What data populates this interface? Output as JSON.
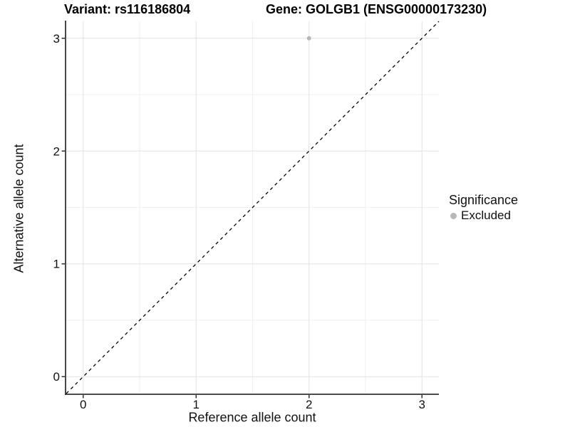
{
  "title": {
    "variant": "Variant: rs116186804",
    "gene": "Gene: GOLGB1 (ENSG00000173230)"
  },
  "axes": {
    "x": {
      "label": "Reference allele count",
      "ticks": [
        "0",
        "1",
        "2",
        "3"
      ]
    },
    "y": {
      "label": "Alternative allele count",
      "ticks": [
        "0",
        "1",
        "2",
        "3"
      ]
    }
  },
  "legend": {
    "title": "Significance",
    "items": [
      {
        "label": "Excluded",
        "color": "#b8b8b8"
      }
    ]
  },
  "colors": {
    "background": "#ffffff",
    "grid_major": "#e2e2e2",
    "grid_minor": "#efefef",
    "axis_line": "#333333",
    "tick_mark": "#333333",
    "point": "#b8b8b8",
    "reference_line": "#000000",
    "text": "#111111"
  },
  "chart_data": {
    "type": "scatter",
    "title": "Variant: rs116186804   Gene: GOLGB1 (ENSG00000173230)",
    "xlabel": "Reference allele count",
    "ylabel": "Alternative allele count",
    "xlim": [
      -0.15,
      3.15
    ],
    "ylim": [
      -0.15,
      3.15
    ],
    "x_ticks": [
      0,
      1,
      2,
      3
    ],
    "y_ticks": [
      0,
      1,
      2,
      3
    ],
    "grid": {
      "on": true,
      "major": [
        0,
        1,
        2,
        3
      ],
      "minor": [
        0.5,
        1.5,
        2.5
      ]
    },
    "legend_position": "right",
    "series": [
      {
        "name": "Excluded",
        "color": "#b8b8b8",
        "points": [
          {
            "x": 2,
            "y": 3
          }
        ]
      }
    ],
    "reference_line": {
      "description": "identity line y = x",
      "slope": 1,
      "intercept": 0,
      "style": "dashed",
      "color": "#000000"
    }
  }
}
